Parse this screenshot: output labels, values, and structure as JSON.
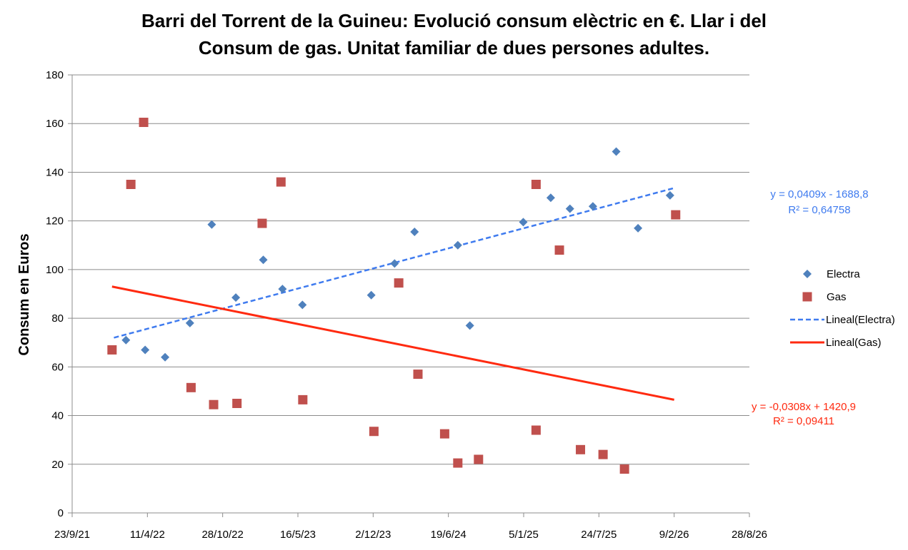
{
  "chart_data": {
    "type": "scatter",
    "title_line1": "Barri del Torrent de la Guineu: Evolució consum elèctric en €. Llar i del",
    "title_line2": "Consum de gas. Unitat familiar de dues persones adultes.",
    "ylabel": "Consum en Euros",
    "xlabel": "",
    "ylim": [
      0,
      180
    ],
    "yticks": [
      0,
      20,
      40,
      60,
      80,
      100,
      120,
      140,
      160,
      180
    ],
    "xlim": [
      "2021-09-23",
      "2026-08-28"
    ],
    "xticks": [
      "23/9/21",
      "11/4/22",
      "28/10/22",
      "16/5/23",
      "2/12/23",
      "19/6/24",
      "5/1/25",
      "24/7/25",
      "9/2/26",
      "28/8/26"
    ],
    "grid": true,
    "series": [
      {
        "name": "Electra",
        "marker": "diamond",
        "color": "#4F81BD",
        "points": [
          {
            "x": "2022-02-13",
            "y": 71
          },
          {
            "x": "2022-04-05",
            "y": 67
          },
          {
            "x": "2022-05-28",
            "y": 64
          },
          {
            "x": "2022-08-02",
            "y": 78
          },
          {
            "x": "2022-09-29",
            "y": 118.5
          },
          {
            "x": "2022-12-02",
            "y": 88.5
          },
          {
            "x": "2023-02-13",
            "y": 104
          },
          {
            "x": "2023-04-05",
            "y": 92
          },
          {
            "x": "2023-05-28",
            "y": 85.5
          },
          {
            "x": "2023-11-27",
            "y": 89.5
          },
          {
            "x": "2024-01-28",
            "y": 102.5
          },
          {
            "x": "2024-03-21",
            "y": 115.5
          },
          {
            "x": "2024-07-14",
            "y": 110
          },
          {
            "x": "2024-08-15",
            "y": 77
          },
          {
            "x": "2025-01-04",
            "y": 119.5
          },
          {
            "x": "2025-03-18",
            "y": 129.5
          },
          {
            "x": "2025-05-08",
            "y": 125
          },
          {
            "x": "2025-07-08",
            "y": 126
          },
          {
            "x": "2025-09-08",
            "y": 148.5
          },
          {
            "x": "2025-11-05",
            "y": 117
          },
          {
            "x": "2026-01-29",
            "y": 130.5
          }
        ]
      },
      {
        "name": "Gas",
        "marker": "square",
        "color": "#C0504D",
        "points": [
          {
            "x": "2022-01-07",
            "y": 67
          },
          {
            "x": "2022-02-26",
            "y": 135
          },
          {
            "x": "2022-04-01",
            "y": 160.5
          },
          {
            "x": "2022-08-05",
            "y": 51.5
          },
          {
            "x": "2022-10-04",
            "y": 44.5
          },
          {
            "x": "2022-12-05",
            "y": 45
          },
          {
            "x": "2023-02-10",
            "y": 119
          },
          {
            "x": "2023-04-01",
            "y": 136
          },
          {
            "x": "2023-05-29",
            "y": 46.5
          },
          {
            "x": "2023-12-04",
            "y": 33.5
          },
          {
            "x": "2024-02-08",
            "y": 94.5
          },
          {
            "x": "2024-03-30",
            "y": 57
          },
          {
            "x": "2024-06-09",
            "y": 32.5
          },
          {
            "x": "2024-07-14",
            "y": 20.5
          },
          {
            "x": "2024-09-07",
            "y": 22
          },
          {
            "x": "2025-02-07",
            "y": 135
          },
          {
            "x": "2025-02-07",
            "y": 34
          },
          {
            "x": "2025-04-10",
            "y": 108
          },
          {
            "x": "2025-06-05",
            "y": 26
          },
          {
            "x": "2025-08-04",
            "y": 24
          },
          {
            "x": "2025-09-30",
            "y": 18
          },
          {
            "x": "2026-02-13",
            "y": 122.5
          }
        ]
      }
    ],
    "trendlines": [
      {
        "name": "Lineal(Electra)",
        "series": "Electra",
        "style": "dashed",
        "color": "#3F7BEF",
        "x_start": "2022-01-12",
        "y_start": 72,
        "x_end": "2026-02-09",
        "y_end": 133.5,
        "equation": "y = 0,0409x - 1688,8",
        "r2": "R² = 0,64758"
      },
      {
        "name": "Lineal(Gas)",
        "series": "Gas",
        "style": "solid",
        "color": "#FF2A10",
        "x_start": "2022-01-07",
        "y_start": 93,
        "x_end": "2026-02-09",
        "y_end": 46.5,
        "equation": "y = -0,0308x + 1420,9",
        "r2": "R² = 0,09411"
      }
    ],
    "legend": {
      "placement": "right",
      "entries": [
        "Electra",
        "Gas",
        "Lineal(Electra)",
        "Lineal(Gas)"
      ]
    }
  }
}
